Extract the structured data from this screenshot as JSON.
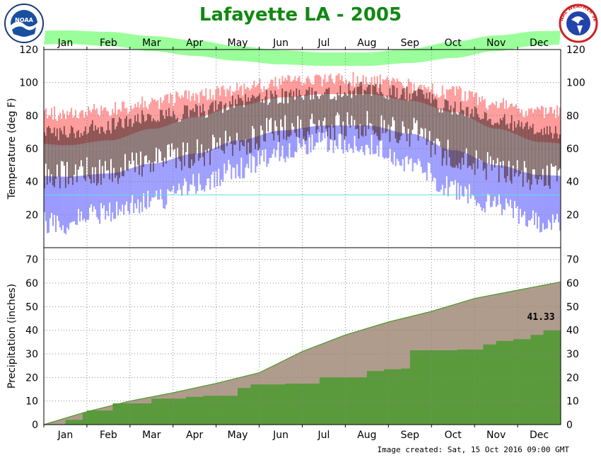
{
  "page": {
    "title": "Lafayette LA - 2005",
    "image_created": "Image created: Sat, 15 Oct 2016 09:00 GMT"
  },
  "logos": {
    "left": {
      "icon": "noaa-logo-icon",
      "text": "NOAA"
    },
    "right": {
      "icon": "nws-logo-icon",
      "text": "NATIONAL WEATHER SERVICE"
    }
  },
  "colors": {
    "title": "#118811",
    "normal_high_band": "#ff9a9a",
    "normal_mid_band": "#9aff9a",
    "normal_low_band": "#9a9aff",
    "record_line": "#66dddd",
    "daily_range_bar": "#4d2b2b",
    "normal_precip_area": "#b09c8c",
    "normal_precip_line": "#4a9a2a",
    "actual_precip_area": "#5a9a3c"
  },
  "chart_data": [
    {
      "type": "area",
      "panel": "temperature",
      "ylabel": "Temperature (deg F)",
      "ylim": [
        0,
        120
      ],
      "yticks": [
        20,
        40,
        60,
        80,
        100,
        120
      ],
      "months": [
        "Jan",
        "Feb",
        "Mar",
        "Apr",
        "May",
        "Jun",
        "Jul",
        "Aug",
        "Sep",
        "Oct",
        "Nov",
        "Dec"
      ],
      "grid": true,
      "normals": {
        "normal_high": [
          62,
          65,
          72,
          79,
          86,
          91,
          93,
          93,
          89,
          82,
          72,
          64
        ],
        "normal_low": [
          43,
          45,
          51,
          57,
          65,
          71,
          74,
          74,
          69,
          59,
          50,
          44
        ]
      },
      "record": {
        "record_high": [
          81,
          84,
          88,
          92,
          96,
          100,
          102,
          102,
          98,
          94,
          87,
          82
        ],
        "record_low": [
          15,
          22,
          28,
          38,
          48,
          58,
          64,
          62,
          50,
          36,
          26,
          16
        ]
      },
      "reference_line_y": 32,
      "daily_observed_high": [
        70,
        74,
        79,
        82,
        88,
        92,
        93,
        96,
        93,
        84,
        78,
        70
      ],
      "daily_observed_low": [
        45,
        47,
        52,
        57,
        64,
        72,
        74,
        74,
        70,
        56,
        48,
        43
      ]
    },
    {
      "type": "area",
      "panel": "precipitation",
      "ylabel": "Precipitation (inches)",
      "ylim": [
        0,
        75
      ],
      "yticks": [
        0,
        10,
        20,
        30,
        40,
        50,
        60,
        70
      ],
      "months": [
        "Jan",
        "Feb",
        "Mar",
        "Apr",
        "May",
        "Jun",
        "Jul",
        "Aug",
        "Sep",
        "Oct",
        "Nov",
        "Dec"
      ],
      "grid": true,
      "series": [
        {
          "name": "normal cumulative",
          "x": [
            0,
            1,
            2,
            3,
            4,
            5,
            6,
            7,
            8,
            9,
            10,
            11,
            12
          ],
          "values": [
            0,
            5.5,
            10,
            13.5,
            17.5,
            22,
            31,
            38,
            43.5,
            48,
            53.5,
            57,
            60.5
          ]
        },
        {
          "name": "observed cumulative",
          "x": [
            0,
            0.5,
            0.9,
            1.0,
            1.6,
            2.5,
            3.3,
            3.7,
            4.5,
            4.8,
            5.6,
            6.4,
            7.5,
            7.9,
            8.3,
            8.5,
            9.6,
            10.2,
            10.5,
            10.9,
            11.3,
            11.6,
            12
          ],
          "values": [
            0,
            2,
            5,
            6,
            9,
            11,
            11.8,
            12.2,
            15.5,
            17,
            17.4,
            20,
            22.7,
            23.5,
            23.8,
            31.5,
            31.8,
            34,
            35.5,
            36.2,
            38,
            40,
            41.33
          ]
        }
      ],
      "label": "41.33"
    }
  ]
}
